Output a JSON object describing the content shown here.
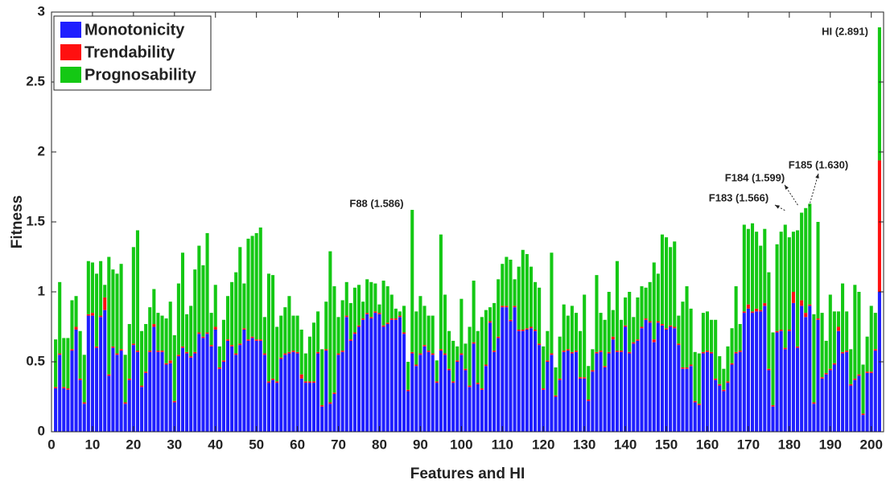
{
  "chart_data": {
    "type": "stacked_bar",
    "xlabel": "Features and HI",
    "ylabel": "Fitness",
    "legend": "upper left",
    "grid": false,
    "xlim": [
      0,
      203
    ],
    "xticks": [
      0,
      10,
      20,
      30,
      40,
      50,
      60,
      70,
      80,
      90,
      100,
      110,
      120,
      130,
      140,
      150,
      160,
      170,
      180,
      190,
      200
    ],
    "ylim": [
      0,
      3
    ],
    "yticks": [
      0,
      0.5,
      1,
      1.5,
      2,
      2.5,
      3
    ],
    "annotations": [
      "F88 (1.586)",
      "F183 (1.566)",
      "F184 (1.599)",
      "F185 (1.630)",
      "HI (2.891)"
    ],
    "x": [
      1,
      2,
      3,
      4,
      5,
      6,
      7,
      8,
      9,
      10,
      11,
      12,
      13,
      14,
      15,
      16,
      17,
      18,
      19,
      20,
      21,
      22,
      23,
      24,
      25,
      26,
      27,
      28,
      29,
      30,
      31,
      32,
      33,
      34,
      35,
      36,
      37,
      38,
      39,
      40,
      41,
      42,
      43,
      44,
      45,
      46,
      47,
      48,
      49,
      50,
      51,
      52,
      53,
      54,
      55,
      56,
      57,
      58,
      59,
      60,
      61,
      62,
      63,
      64,
      65,
      66,
      67,
      68,
      69,
      70,
      71,
      72,
      73,
      74,
      75,
      76,
      77,
      78,
      79,
      80,
      81,
      82,
      83,
      84,
      85,
      86,
      87,
      88,
      89,
      90,
      91,
      92,
      93,
      94,
      95,
      96,
      97,
      98,
      99,
      100,
      101,
      102,
      103,
      104,
      105,
      106,
      107,
      108,
      109,
      110,
      111,
      112,
      113,
      114,
      115,
      116,
      117,
      118,
      119,
      120,
      121,
      122,
      123,
      124,
      125,
      126,
      127,
      128,
      129,
      130,
      131,
      132,
      133,
      134,
      135,
      136,
      137,
      138,
      139,
      140,
      141,
      142,
      143,
      144,
      145,
      146,
      147,
      148,
      149,
      150,
      151,
      152,
      153,
      154,
      155,
      156,
      157,
      158,
      159,
      160,
      161,
      162,
      163,
      164,
      165,
      166,
      167,
      168,
      169,
      170,
      171,
      172,
      173,
      174,
      175,
      176,
      177,
      178,
      179,
      180,
      181,
      182,
      183,
      184,
      185,
      186,
      187,
      188,
      189,
      190,
      191,
      192,
      193,
      194,
      195,
      196,
      197,
      198,
      199,
      200,
      201,
      202
    ],
    "series": [
      {
        "name": "Monotonicity",
        "color": "#1f1fff",
        "values": [
          0.31,
          0.55,
          0.31,
          0.3,
          0.58,
          0.73,
          0.37,
          0.2,
          0.83,
          0.83,
          0.6,
          0.82,
          0.87,
          0.4,
          0.6,
          0.55,
          0.58,
          0.2,
          0.37,
          0.62,
          0.57,
          0.32,
          0.42,
          0.57,
          0.75,
          0.57,
          0.57,
          0.48,
          0.49,
          0.21,
          0.54,
          0.6,
          0.56,
          0.53,
          0.56,
          0.7,
          0.67,
          0.7,
          0.61,
          0.73,
          0.45,
          0.5,
          0.65,
          0.61,
          0.55,
          0.62,
          0.73,
          0.65,
          0.67,
          0.65,
          0.65,
          0.55,
          0.35,
          0.37,
          0.35,
          0.52,
          0.55,
          0.56,
          0.57,
          0.56,
          0.38,
          0.35,
          0.35,
          0.35,
          0.56,
          0.18,
          0.58,
          0.2,
          0.27,
          0.55,
          0.57,
          0.82,
          0.65,
          0.7,
          0.75,
          0.8,
          0.84,
          0.81,
          0.85,
          0.84,
          0.75,
          0.77,
          0.8,
          0.8,
          0.82,
          0.7,
          0.29,
          0.56,
          0.47,
          0.55,
          0.61,
          0.57,
          0.55,
          0.35,
          0.58,
          0.55,
          0.44,
          0.35,
          0.5,
          0.55,
          0.44,
          0.32,
          0.63,
          0.34,
          0.3,
          0.47,
          0.78,
          0.57,
          0.67,
          0.89,
          0.89,
          0.79,
          0.89,
          0.72,
          0.72,
          0.73,
          0.74,
          0.72,
          0.62,
          0.3,
          0.5,
          0.55,
          0.25,
          0.37,
          0.57,
          0.58,
          0.56,
          0.57,
          0.38,
          0.38,
          0.22,
          0.43,
          0.56,
          0.57,
          0.46,
          0.56,
          0.66,
          0.57,
          0.57,
          0.75,
          0.56,
          0.63,
          0.65,
          0.74,
          0.8,
          0.78,
          0.64,
          0.78,
          0.76,
          0.73,
          0.75,
          0.74,
          0.62,
          0.45,
          0.45,
          0.47,
          0.21,
          0.19,
          0.56,
          0.57,
          0.56,
          0.37,
          0.33,
          0.29,
          0.35,
          0.48,
          0.56,
          0.57,
          0.85,
          0.88,
          0.85,
          0.86,
          0.86,
          0.9,
          0.44,
          0.18,
          0.71,
          0.72,
          0.59,
          0.72,
          0.92,
          0.6,
          0.9,
          0.82,
          0.9,
          0.2,
          0.8,
          0.38,
          0.41,
          0.44,
          0.48,
          0.72,
          0.56,
          0.57,
          0.33,
          0.37,
          0.4,
          0.12,
          0.42,
          0.42,
          0.58,
          1.0
        ]
      },
      {
        "name": "Trendability",
        "color": "#ff1010",
        "values": [
          0.01,
          0.01,
          0.01,
          0.01,
          0.01,
          0.02,
          0.01,
          0.01,
          0.01,
          0.02,
          0.01,
          0.01,
          0.09,
          0.01,
          0.01,
          0.01,
          0.01,
          0.01,
          0.01,
          0.01,
          0.01,
          0.01,
          0.01,
          0.01,
          0.02,
          0.01,
          0.01,
          0.01,
          0.02,
          0.01,
          0.01,
          0.01,
          0.01,
          0.01,
          0.01,
          0.01,
          0.01,
          0.01,
          0.01,
          0.02,
          0.01,
          0.01,
          0.01,
          0.01,
          0.01,
          0.01,
          0.01,
          0.01,
          0.01,
          0.01,
          0.01,
          0.01,
          0.01,
          0.01,
          0.01,
          0.01,
          0.01,
          0.01,
          0.01,
          0.01,
          0.03,
          0.01,
          0.01,
          0.01,
          0.01,
          0.01,
          0.01,
          0.01,
          0.01,
          0.01,
          0.01,
          0.01,
          0.01,
          0.01,
          0.01,
          0.01,
          0.01,
          0.01,
          0.01,
          0.01,
          0.01,
          0.01,
          0.01,
          0.01,
          0.01,
          0.01,
          0.01,
          0.01,
          0.01,
          0.01,
          0.01,
          0.01,
          0.01,
          0.01,
          0.01,
          0.01,
          0.01,
          0.01,
          0.01,
          0.01,
          0.01,
          0.01,
          0.01,
          0.01,
          0.01,
          0.01,
          0.01,
          0.01,
          0.01,
          0.01,
          0.01,
          0.01,
          0.01,
          0.01,
          0.01,
          0.01,
          0.01,
          0.01,
          0.01,
          0.01,
          0.01,
          0.01,
          0.01,
          0.01,
          0.01,
          0.01,
          0.01,
          0.01,
          0.01,
          0.01,
          0.01,
          0.01,
          0.01,
          0.01,
          0.01,
          0.01,
          0.02,
          0.01,
          0.01,
          0.01,
          0.01,
          0.01,
          0.01,
          0.01,
          0.01,
          0.01,
          0.02,
          0.01,
          0.01,
          0.01,
          0.01,
          0.01,
          0.01,
          0.01,
          0.01,
          0.01,
          0.01,
          0.01,
          0.01,
          0.01,
          0.01,
          0.01,
          0.01,
          0.01,
          0.01,
          0.01,
          0.01,
          0.01,
          0.01,
          0.03,
          0.01,
          0.02,
          0.01,
          0.02,
          0.01,
          0.01,
          0.01,
          0.01,
          0.01,
          0.01,
          0.08,
          0.01,
          0.04,
          0.03,
          0.01,
          0.01,
          0.01,
          0.01,
          0.01,
          0.01,
          0.01,
          0.03,
          0.01,
          0.01,
          0.01,
          0.01,
          0.01,
          0.01,
          0.01,
          0.01,
          0.01,
          0.94
        ]
      },
      {
        "name": "Prognosability",
        "color": "#14c814",
        "values": [
          0.34,
          0.51,
          0.35,
          0.36,
          0.35,
          0.22,
          0.34,
          0.34,
          0.38,
          0.36,
          0.52,
          0.39,
          0.09,
          0.84,
          0.55,
          0.57,
          0.61,
          0.34,
          0.39,
          0.69,
          0.86,
          0.39,
          0.34,
          0.31,
          0.25,
          0.27,
          0.25,
          0.32,
          0.42,
          0.47,
          0.51,
          0.67,
          0.27,
          0.36,
          0.59,
          0.62,
          0.51,
          0.71,
          0.23,
          0.3,
          0.15,
          0.29,
          0.31,
          0.45,
          0.58,
          0.69,
          0.32,
          0.72,
          0.72,
          0.76,
          0.8,
          0.26,
          0.77,
          0.74,
          0.39,
          0.3,
          0.33,
          0.4,
          0.25,
          0.26,
          0.32,
          0.2,
          0.32,
          0.42,
          0.29,
          0.4,
          0.34,
          1.08,
          0.76,
          0.26,
          0.36,
          0.24,
          0.26,
          0.32,
          0.29,
          0.12,
          0.24,
          0.25,
          0.2,
          0.06,
          0.32,
          0.26,
          0.17,
          0.07,
          0.03,
          0.19,
          0.2,
          1.016,
          0.38,
          0.41,
          0.28,
          0.25,
          0.27,
          0.15,
          0.82,
          0.42,
          0.27,
          0.29,
          0.1,
          0.39,
          0.18,
          0.42,
          0.44,
          0.37,
          0.51,
          0.39,
          0.1,
          0.34,
          0.41,
          0.3,
          0.35,
          0.43,
          0.19,
          0.45,
          0.57,
          0.53,
          0.43,
          0.34,
          0.4,
          0.3,
          0.21,
          0.72,
          0.2,
          0.3,
          0.33,
          0.24,
          0.33,
          0.27,
          0.33,
          0.59,
          0.24,
          0.15,
          0.55,
          0.27,
          0.33,
          0.43,
          0.19,
          0.64,
          0.22,
          0.2,
          0.43,
          0.18,
          0.3,
          0.29,
          0.22,
          0.28,
          0.55,
          0.34,
          0.64,
          0.65,
          0.56,
          0.61,
          0.2,
          0.47,
          0.58,
          0.4,
          0.35,
          0.36,
          0.28,
          0.28,
          0.23,
          0.42,
          0.2,
          0.15,
          0.25,
          0.25,
          0.47,
          0.19,
          0.62,
          0.54,
          0.63,
          0.55,
          0.46,
          0.53,
          0.69,
          0.52,
          0.62,
          0.7,
          0.88,
          0.66,
          0.43,
          0.83,
          0.626,
          0.749,
          0.72,
          0.63,
          0.69,
          0.46,
          0.23,
          0.53,
          0.37,
          0.11,
          0.49,
          0.28,
          0.25,
          0.67,
          0.59,
          0.35,
          0.25,
          0.47,
          0.26,
          0.951
        ]
      }
    ]
  }
}
